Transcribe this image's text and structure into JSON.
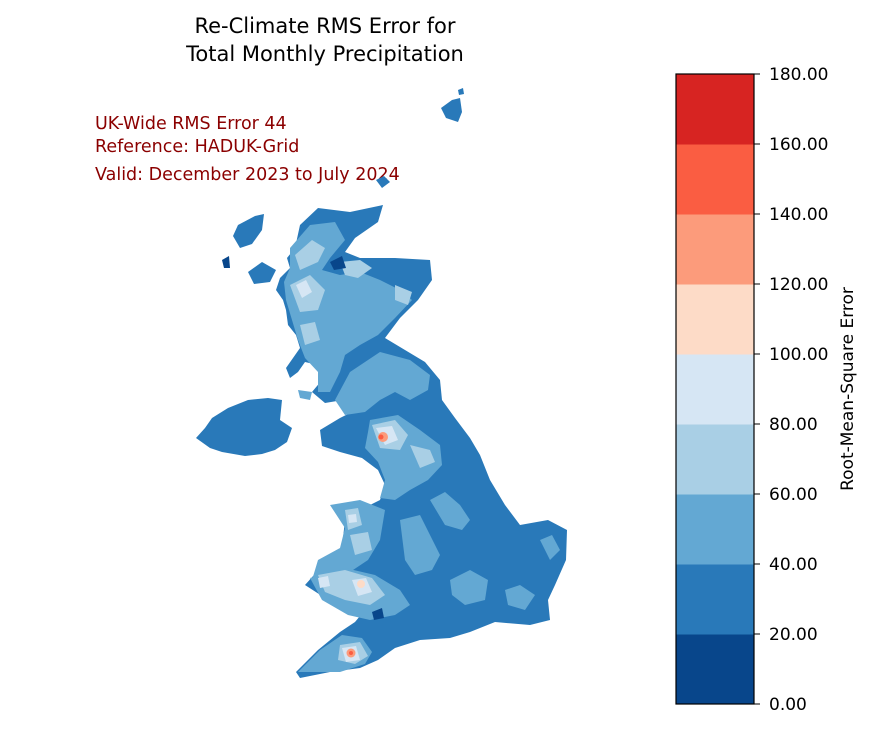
{
  "title": {
    "line1": "Re-Climate RMS Error for",
    "line2": "Total Monthly Precipitation"
  },
  "annotations": {
    "rms": "UK-Wide RMS Error 44",
    "reference": "Reference: HADUK-Grid",
    "valid": "Valid: December 2023 to July 2024"
  },
  "colorbar": {
    "label": "Root-Mean-Square Error",
    "levels": [
      "0.00",
      "20.00",
      "40.00",
      "60.00",
      "80.00",
      "100.00",
      "120.00",
      "140.00",
      "160.00",
      "180.00"
    ],
    "colors": [
      "#08468b",
      "#2979b9",
      "#63a8d3",
      "#a9cfe5",
      "#d6e6f4",
      "#fddbc7",
      "#fc9b7b",
      "#fa5d42",
      "#d72422"
    ]
  },
  "colors": {
    "annotation": "#8b0000"
  }
}
